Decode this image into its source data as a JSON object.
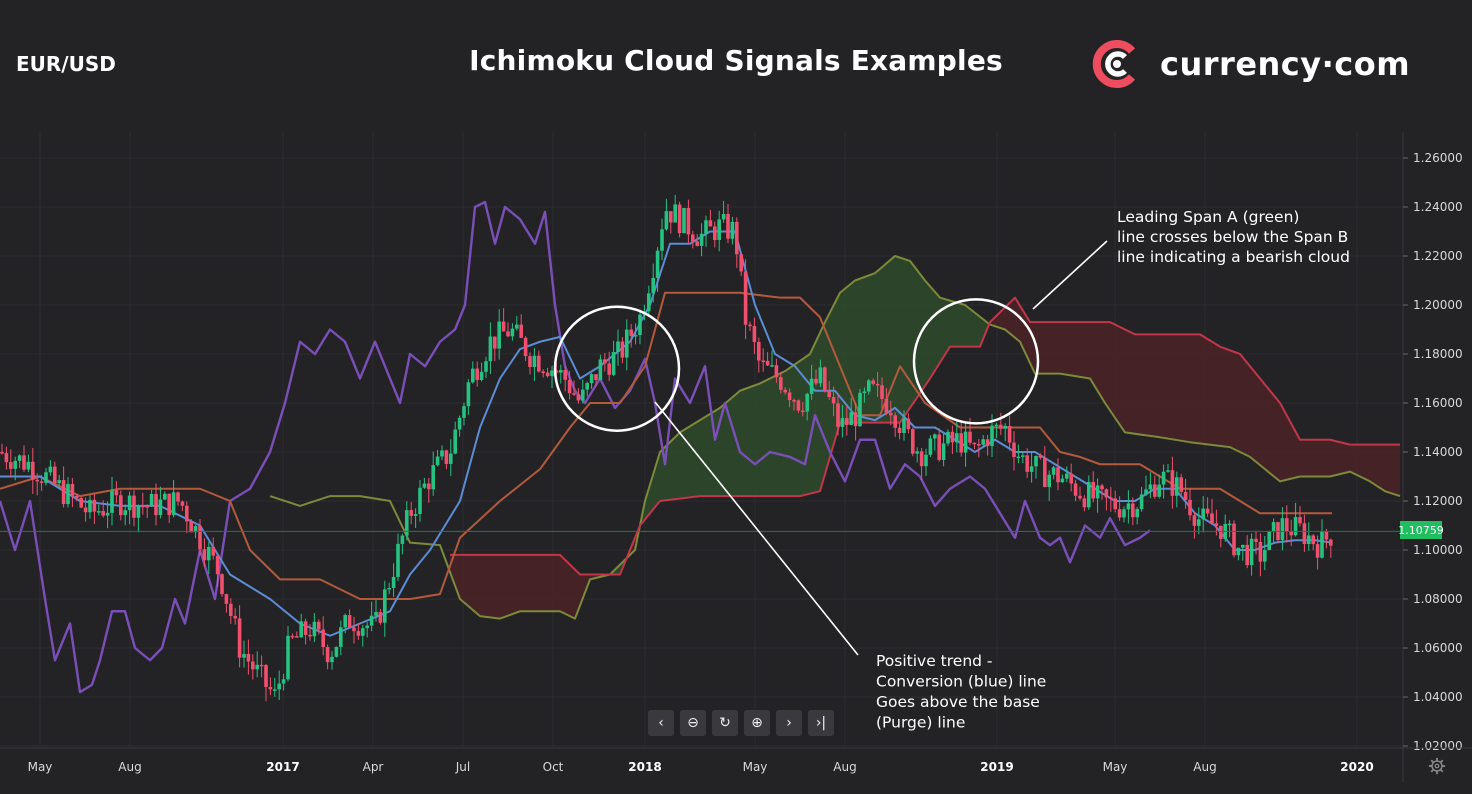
{
  "header": {
    "pair": "EUR/USD",
    "title": "Ichimoku Cloud Signals Examples",
    "brand": "currency·com"
  },
  "price_label": "1.10759",
  "annotations": [
    {
      "lines": [
        "Leading Span A (green)",
        "line crosses below the Span B",
        "line indicating a bearish cloud"
      ]
    },
    {
      "lines": [
        "Positive trend -",
        "Conversion (blue) line",
        "Goes above the base",
        "(Purge) line"
      ]
    }
  ],
  "toolbar": [
    {
      "name": "scroll-left-button",
      "glyph": "‹"
    },
    {
      "name": "zoom-out-button",
      "glyph": "⊖"
    },
    {
      "name": "reset-button",
      "glyph": "↻"
    },
    {
      "name": "zoom-in-button",
      "glyph": "⊕"
    },
    {
      "name": "scroll-right-button",
      "glyph": "›"
    },
    {
      "name": "go-to-end-button",
      "glyph": "›|"
    }
  ],
  "colors": {
    "background": "#232326",
    "up_candle": "#26c281",
    "down_candle": "#f0506e",
    "conversion_line": "#5b8cd6",
    "base_line": "#b35a3c",
    "lagging_span": "#7a4fb8",
    "span_a": "#7c8a3a",
    "span_b": "#c2364a",
    "bull_cloud": "#2e4a2c",
    "bear_cloud": "#4a2226",
    "brand_logo": "#ee4d5f"
  },
  "chart_data": {
    "type": "candlestick",
    "title": "Ichimoku Cloud Signals Examples",
    "ylim": [
      1.02,
      1.265
    ],
    "y_ticks": [
      "1.26000",
      "1.24000",
      "1.22000",
      "1.20000",
      "1.18000",
      "1.16000",
      "1.14000",
      "1.12000",
      "1.10000",
      "1.08000",
      "1.06000",
      "1.04000",
      "1.02000"
    ],
    "x_ticks": [
      {
        "label": "May",
        "t": 40,
        "bold": false
      },
      {
        "label": "Aug",
        "t": 130,
        "bold": false
      },
      {
        "label": "2017",
        "t": 283,
        "bold": true
      },
      {
        "label": "Apr",
        "t": 373,
        "bold": false
      },
      {
        "label": "Jul",
        "t": 463,
        "bold": false
      },
      {
        "label": "Oct",
        "t": 553,
        "bold": false
      },
      {
        "label": "2018",
        "t": 645,
        "bold": true
      },
      {
        "label": "May",
        "t": 755,
        "bold": false
      },
      {
        "label": "Aug",
        "t": 845,
        "bold": false
      },
      {
        "label": "2019",
        "t": 997,
        "bold": true
      },
      {
        "label": "May",
        "t": 1115,
        "bold": false
      },
      {
        "label": "Aug",
        "t": 1205,
        "bold": false
      },
      {
        "label": "2020",
        "t": 1357,
        "bold": true
      }
    ],
    "last_price": 1.10759,
    "conversion_line": [
      [
        0,
        1.13
      ],
      [
        40,
        1.13
      ],
      [
        80,
        1.12
      ],
      [
        120,
        1.118
      ],
      [
        160,
        1.118
      ],
      [
        200,
        1.11
      ],
      [
        230,
        1.09
      ],
      [
        270,
        1.08
      ],
      [
        300,
        1.07
      ],
      [
        330,
        1.065
      ],
      [
        360,
        1.07
      ],
      [
        390,
        1.075
      ],
      [
        410,
        1.09
      ],
      [
        430,
        1.1
      ],
      [
        460,
        1.12
      ],
      [
        480,
        1.15
      ],
      [
        500,
        1.17
      ],
      [
        520,
        1.182
      ],
      [
        540,
        1.185
      ],
      [
        560,
        1.187
      ],
      [
        580,
        1.17
      ],
      [
        600,
        1.175
      ],
      [
        630,
        1.185
      ],
      [
        650,
        1.2
      ],
      [
        670,
        1.225
      ],
      [
        690,
        1.225
      ],
      [
        710,
        1.23
      ],
      [
        735,
        1.23
      ],
      [
        755,
        1.2
      ],
      [
        775,
        1.18
      ],
      [
        795,
        1.175
      ],
      [
        815,
        1.165
      ],
      [
        835,
        1.165
      ],
      [
        855,
        1.155
      ],
      [
        875,
        1.153
      ],
      [
        895,
        1.158
      ],
      [
        915,
        1.15
      ],
      [
        935,
        1.15
      ],
      [
        955,
        1.145
      ],
      [
        975,
        1.14
      ],
      [
        995,
        1.145
      ],
      [
        1015,
        1.14
      ],
      [
        1035,
        1.14
      ],
      [
        1055,
        1.135
      ],
      [
        1075,
        1.13
      ],
      [
        1095,
        1.125
      ],
      [
        1115,
        1.12
      ],
      [
        1135,
        1.12
      ],
      [
        1155,
        1.125
      ],
      [
        1175,
        1.125
      ],
      [
        1195,
        1.115
      ],
      [
        1215,
        1.11
      ],
      [
        1235,
        1.1
      ],
      [
        1255,
        1.1
      ],
      [
        1275,
        1.103
      ],
      [
        1295,
        1.104
      ],
      [
        1315,
        1.104
      ],
      [
        1332,
        1.103
      ]
    ],
    "base_line": [
      [
        0,
        1.125
      ],
      [
        40,
        1.13
      ],
      [
        80,
        1.122
      ],
      [
        120,
        1.125
      ],
      [
        160,
        1.125
      ],
      [
        200,
        1.125
      ],
      [
        230,
        1.12
      ],
      [
        250,
        1.1
      ],
      [
        280,
        1.088
      ],
      [
        320,
        1.088
      ],
      [
        360,
        1.08
      ],
      [
        390,
        1.08
      ],
      [
        410,
        1.08
      ],
      [
        440,
        1.082
      ],
      [
        460,
        1.105
      ],
      [
        500,
        1.12
      ],
      [
        540,
        1.133
      ],
      [
        570,
        1.15
      ],
      [
        590,
        1.16
      ],
      [
        620,
        1.16
      ],
      [
        645,
        1.175
      ],
      [
        665,
        1.205
      ],
      [
        700,
        1.205
      ],
      [
        740,
        1.205
      ],
      [
        780,
        1.203
      ],
      [
        800,
        1.203
      ],
      [
        820,
        1.195
      ],
      [
        845,
        1.17
      ],
      [
        860,
        1.155
      ],
      [
        880,
        1.155
      ],
      [
        900,
        1.175
      ],
      [
        925,
        1.16
      ],
      [
        960,
        1.15
      ],
      [
        1000,
        1.15
      ],
      [
        1040,
        1.15
      ],
      [
        1060,
        1.14
      ],
      [
        1080,
        1.138
      ],
      [
        1100,
        1.135
      ],
      [
        1140,
        1.135
      ],
      [
        1160,
        1.13
      ],
      [
        1180,
        1.125
      ],
      [
        1200,
        1.125
      ],
      [
        1220,
        1.125
      ],
      [
        1240,
        1.12
      ],
      [
        1260,
        1.115
      ],
      [
        1300,
        1.115
      ],
      [
        1332,
        1.115
      ]
    ],
    "lagging_span": [
      [
        0,
        1.12
      ],
      [
        15,
        1.1
      ],
      [
        30,
        1.12
      ],
      [
        45,
        1.08
      ],
      [
        55,
        1.055
      ],
      [
        70,
        1.07
      ],
      [
        80,
        1.042
      ],
      [
        92,
        1.045
      ],
      [
        100,
        1.055
      ],
      [
        112,
        1.075
      ],
      [
        125,
        1.075
      ],
      [
        135,
        1.06
      ],
      [
        150,
        1.055
      ],
      [
        162,
        1.06
      ],
      [
        175,
        1.08
      ],
      [
        185,
        1.07
      ],
      [
        200,
        1.1
      ],
      [
        215,
        1.08
      ],
      [
        230,
        1.12
      ],
      [
        250,
        1.125
      ],
      [
        270,
        1.14
      ],
      [
        285,
        1.16
      ],
      [
        300,
        1.185
      ],
      [
        315,
        1.18
      ],
      [
        330,
        1.19
      ],
      [
        345,
        1.185
      ],
      [
        360,
        1.17
      ],
      [
        375,
        1.185
      ],
      [
        390,
        1.17
      ],
      [
        400,
        1.16
      ],
      [
        410,
        1.18
      ],
      [
        425,
        1.175
      ],
      [
        440,
        1.185
      ],
      [
        455,
        1.19
      ],
      [
        465,
        1.2
      ],
      [
        475,
        1.24
      ],
      [
        485,
        1.242
      ],
      [
        495,
        1.225
      ],
      [
        505,
        1.24
      ],
      [
        520,
        1.235
      ],
      [
        535,
        1.225
      ],
      [
        545,
        1.238
      ],
      [
        555,
        1.2
      ],
      [
        565,
        1.175
      ],
      [
        575,
        1.165
      ],
      [
        585,
        1.16
      ],
      [
        600,
        1.17
      ],
      [
        615,
        1.158
      ],
      [
        630,
        1.165
      ],
      [
        645,
        1.178
      ],
      [
        655,
        1.16
      ],
      [
        665,
        1.135
      ],
      [
        675,
        1.17
      ],
      [
        690,
        1.16
      ],
      [
        705,
        1.175
      ],
      [
        715,
        1.145
      ],
      [
        725,
        1.16
      ],
      [
        740,
        1.14
      ],
      [
        755,
        1.135
      ],
      [
        770,
        1.14
      ],
      [
        790,
        1.138
      ],
      [
        805,
        1.135
      ],
      [
        815,
        1.155
      ],
      [
        830,
        1.14
      ],
      [
        845,
        1.128
      ],
      [
        860,
        1.145
      ],
      [
        875,
        1.145
      ],
      [
        890,
        1.125
      ],
      [
        905,
        1.135
      ],
      [
        920,
        1.13
      ],
      [
        935,
        1.118
      ],
      [
        950,
        1.125
      ],
      [
        970,
        1.13
      ],
      [
        985,
        1.125
      ],
      [
        1000,
        1.115
      ],
      [
        1015,
        1.105
      ],
      [
        1025,
        1.12
      ],
      [
        1040,
        1.105
      ],
      [
        1050,
        1.102
      ],
      [
        1060,
        1.105
      ],
      [
        1070,
        1.095
      ],
      [
        1085,
        1.11
      ],
      [
        1100,
        1.105
      ],
      [
        1110,
        1.113
      ],
      [
        1125,
        1.102
      ],
      [
        1140,
        1.105
      ],
      [
        1150,
        1.108
      ]
    ],
    "span_a": [
      [
        270,
        1.122
      ],
      [
        300,
        1.118
      ],
      [
        330,
        1.122
      ],
      [
        360,
        1.122
      ],
      [
        390,
        1.12
      ],
      [
        410,
        1.103
      ],
      [
        440,
        1.102
      ],
      [
        460,
        1.08
      ],
      [
        480,
        1.073
      ],
      [
        500,
        1.072
      ],
      [
        520,
        1.075
      ],
      [
        540,
        1.075
      ],
      [
        560,
        1.075
      ],
      [
        575,
        1.072
      ],
      [
        590,
        1.088
      ],
      [
        610,
        1.09
      ],
      [
        635,
        1.1
      ],
      [
        645,
        1.12
      ],
      [
        660,
        1.14
      ],
      [
        680,
        1.148
      ],
      [
        700,
        1.153
      ],
      [
        720,
        1.158
      ],
      [
        740,
        1.165
      ],
      [
        760,
        1.168
      ],
      [
        785,
        1.173
      ],
      [
        810,
        1.18
      ],
      [
        825,
        1.193
      ],
      [
        840,
        1.205
      ],
      [
        855,
        1.21
      ],
      [
        875,
        1.213
      ],
      [
        895,
        1.22
      ],
      [
        910,
        1.218
      ],
      [
        925,
        1.21
      ],
      [
        940,
        1.203
      ],
      [
        965,
        1.2
      ],
      [
        990,
        1.192
      ],
      [
        1005,
        1.19
      ],
      [
        1020,
        1.185
      ],
      [
        1035,
        1.172
      ],
      [
        1060,
        1.172
      ],
      [
        1090,
        1.17
      ],
      [
        1105,
        1.16
      ],
      [
        1125,
        1.148
      ],
      [
        1160,
        1.146
      ],
      [
        1190,
        1.144
      ],
      [
        1230,
        1.142
      ],
      [
        1250,
        1.138
      ],
      [
        1280,
        1.128
      ],
      [
        1300,
        1.13
      ],
      [
        1330,
        1.13
      ],
      [
        1350,
        1.132
      ],
      [
        1370,
        1.128
      ],
      [
        1385,
        1.124
      ],
      [
        1400,
        1.122
      ]
    ],
    "span_b": [
      [
        450,
        1.098
      ],
      [
        480,
        1.098
      ],
      [
        520,
        1.098
      ],
      [
        560,
        1.098
      ],
      [
        580,
        1.09
      ],
      [
        600,
        1.09
      ],
      [
        620,
        1.09
      ],
      [
        640,
        1.11
      ],
      [
        660,
        1.12
      ],
      [
        700,
        1.122
      ],
      [
        740,
        1.122
      ],
      [
        780,
        1.122
      ],
      [
        800,
        1.122
      ],
      [
        820,
        1.124
      ],
      [
        840,
        1.152
      ],
      [
        860,
        1.152
      ],
      [
        900,
        1.152
      ],
      [
        930,
        1.17
      ],
      [
        950,
        1.183
      ],
      [
        980,
        1.183
      ],
      [
        990,
        1.193
      ],
      [
        1000,
        1.197
      ],
      [
        1015,
        1.203
      ],
      [
        1030,
        1.193
      ],
      [
        1070,
        1.193
      ],
      [
        1090,
        1.193
      ],
      [
        1110,
        1.193
      ],
      [
        1135,
        1.188
      ],
      [
        1170,
        1.188
      ],
      [
        1200,
        1.188
      ],
      [
        1220,
        1.183
      ],
      [
        1240,
        1.18
      ],
      [
        1260,
        1.17
      ],
      [
        1280,
        1.16
      ],
      [
        1300,
        1.145
      ],
      [
        1330,
        1.145
      ],
      [
        1350,
        1.143
      ],
      [
        1380,
        1.143
      ],
      [
        1400,
        1.143
      ]
    ],
    "highlight_circles": [
      {
        "t": 617,
        "y": 1.174
      },
      {
        "t": 976,
        "y": 1.177
      }
    ],
    "candles_summary": "Daily EUR/USD candles from ~Apr 2016 to ~Dec 2019; approximate path generated between anchor closes",
    "candle_anchors": [
      [
        0,
        1.14
      ],
      [
        30,
        1.135
      ],
      [
        60,
        1.125
      ],
      [
        90,
        1.115
      ],
      [
        120,
        1.12
      ],
      [
        150,
        1.118
      ],
      [
        180,
        1.12
      ],
      [
        200,
        1.105
      ],
      [
        220,
        1.09
      ],
      [
        240,
        1.06
      ],
      [
        260,
        1.048
      ],
      [
        275,
        1.04
      ],
      [
        290,
        1.062
      ],
      [
        310,
        1.068
      ],
      [
        330,
        1.058
      ],
      [
        350,
        1.072
      ],
      [
        375,
        1.068
      ],
      [
        395,
        1.095
      ],
      [
        410,
        1.115
      ],
      [
        430,
        1.13
      ],
      [
        450,
        1.14
      ],
      [
        470,
        1.17
      ],
      [
        490,
        1.185
      ],
      [
        510,
        1.19
      ],
      [
        530,
        1.18
      ],
      [
        550,
        1.175
      ],
      [
        565,
        1.17
      ],
      [
        580,
        1.16
      ],
      [
        600,
        1.175
      ],
      [
        620,
        1.18
      ],
      [
        640,
        1.195
      ],
      [
        655,
        1.22
      ],
      [
        665,
        1.24
      ],
      [
        680,
        1.235
      ],
      [
        700,
        1.228
      ],
      [
        720,
        1.232
      ],
      [
        735,
        1.23
      ],
      [
        745,
        1.195
      ],
      [
        760,
        1.175
      ],
      [
        780,
        1.17
      ],
      [
        800,
        1.16
      ],
      [
        820,
        1.17
      ],
      [
        840,
        1.15
      ],
      [
        855,
        1.155
      ],
      [
        870,
        1.165
      ],
      [
        890,
        1.16
      ],
      [
        905,
        1.148
      ],
      [
        920,
        1.14
      ],
      [
        940,
        1.142
      ],
      [
        960,
        1.145
      ],
      [
        975,
        1.14
      ],
      [
        990,
        1.148
      ],
      [
        1005,
        1.15
      ],
      [
        1020,
        1.138
      ],
      [
        1040,
        1.132
      ],
      [
        1060,
        1.13
      ],
      [
        1080,
        1.124
      ],
      [
        1100,
        1.12
      ],
      [
        1120,
        1.118
      ],
      [
        1140,
        1.12
      ],
      [
        1160,
        1.13
      ],
      [
        1180,
        1.125
      ],
      [
        1200,
        1.112
      ],
      [
        1220,
        1.11
      ],
      [
        1240,
        1.1
      ],
      [
        1260,
        1.098
      ],
      [
        1280,
        1.11
      ],
      [
        1300,
        1.108
      ],
      [
        1320,
        1.102
      ],
      [
        1332,
        1.107
      ]
    ]
  }
}
